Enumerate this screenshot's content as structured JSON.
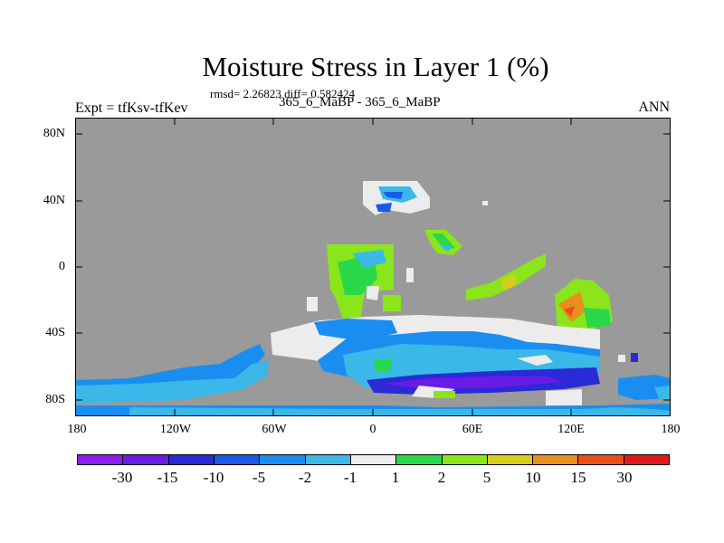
{
  "title": "Moisture Stress in Layer 1 (%)",
  "stats": "rmsd= 2.26823 diff= 0.582424",
  "expt_label": "Expt = tfKsv-tfKev",
  "period_label": "365_6_MaBP - 365_6_MaBP",
  "season_label": "ANN",
  "axes": {
    "y_ticks": [
      "80N",
      "40N",
      "0",
      "40S",
      "80S"
    ],
    "x_ticks": [
      "180",
      "120W",
      "60W",
      "0",
      "60E",
      "120E",
      "180"
    ]
  },
  "colorbar": {
    "labels": [
      "-30",
      "-15",
      "-10",
      "-5",
      "-2",
      "-1",
      "1",
      "2",
      "5",
      "10",
      "15",
      "30"
    ],
    "colors": [
      "#8c1cf0",
      "#6a1ce6",
      "#2a2ad6",
      "#1a5ae6",
      "#1a8ef0",
      "#3ab8e8",
      "#ececec",
      "#2ad84a",
      "#8ae61a",
      "#d8cc1a",
      "#e8901a",
      "#e8501a",
      "#e01a1a"
    ]
  },
  "colors": {
    "land_mask": "#9a9a9a",
    "neutral": "#ececec"
  }
}
